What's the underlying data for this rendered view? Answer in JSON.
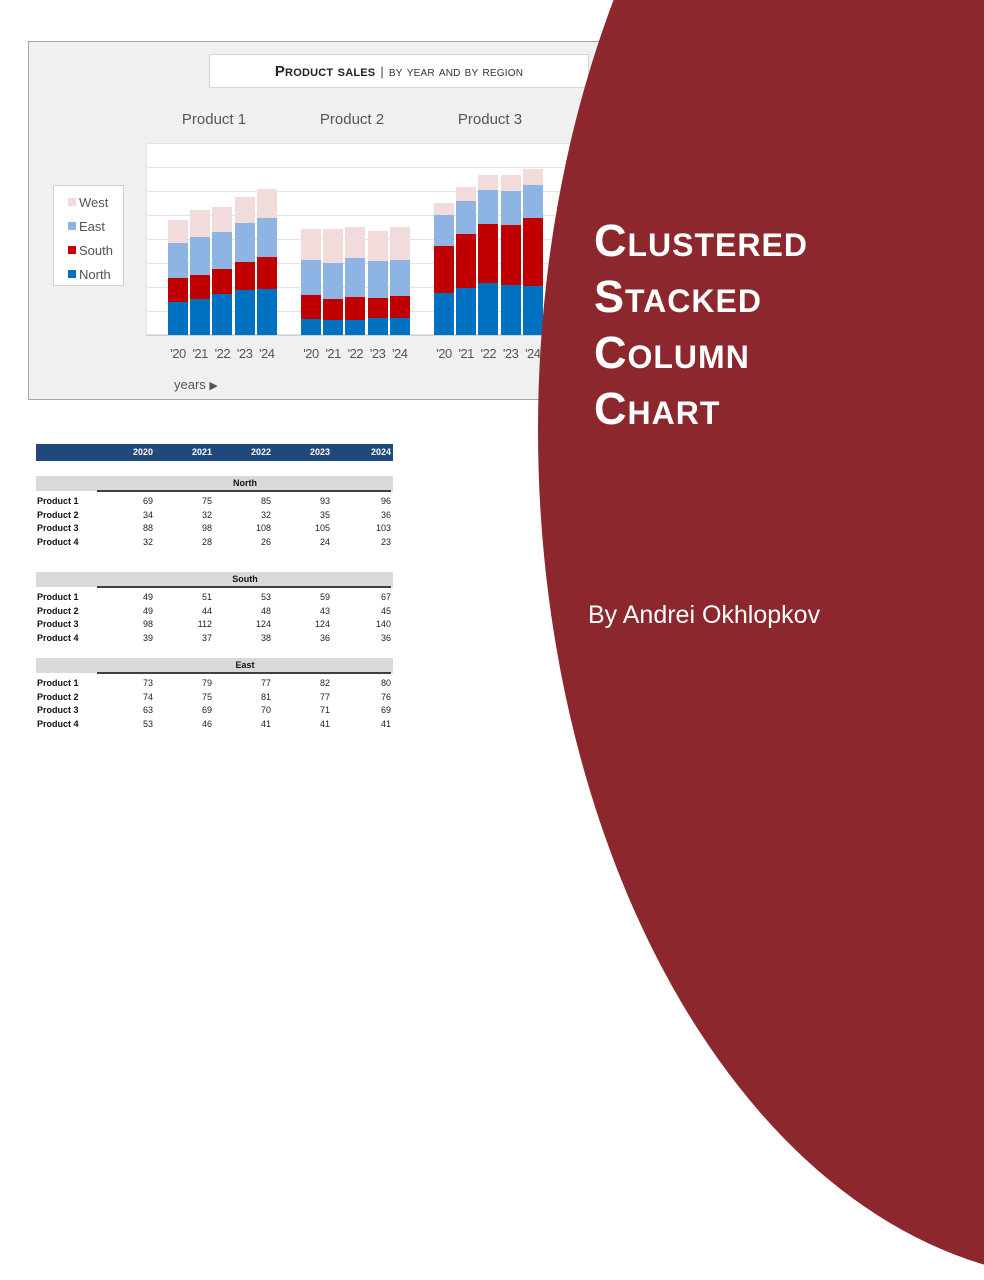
{
  "chart": {
    "title_main": "Product sales",
    "title_sep": "|",
    "title_sub": "by year and by region",
    "product_labels": [
      "Product 1",
      "Product 2",
      "Product 3"
    ],
    "tick_labels": [
      "'20",
      "'21",
      "'22",
      "'23",
      "'24"
    ],
    "x_axis_label": "years",
    "x_axis_arrow": "▶",
    "legend": [
      {
        "label": "West",
        "color": "#f2dcdb"
      },
      {
        "label": "East",
        "color": "#8db4e2"
      },
      {
        "label": "South",
        "color": "#c00000"
      },
      {
        "label": "North",
        "color": "#0070c0"
      }
    ]
  },
  "chart_data": {
    "type": "bar",
    "subtype": "clustered-stacked",
    "title": "Product sales | by year and by region",
    "xlabel": "years",
    "ylabel": "",
    "ylim": [
      0,
      400
    ],
    "grid": true,
    "legend_position": "left",
    "groups": [
      "Product 1",
      "Product 2",
      "Product 3"
    ],
    "categories": [
      "'20",
      "'21",
      "'22",
      "'23",
      "'24"
    ],
    "stack_order": [
      "North",
      "South",
      "East",
      "West"
    ],
    "series": [
      {
        "name": "North",
        "color": "#0070c0",
        "values": {
          "Product 1": [
            69,
            75,
            85,
            93,
            96
          ],
          "Product 2": [
            34,
            32,
            32,
            35,
            36
          ],
          "Product 3": [
            88,
            98,
            108,
            105,
            103
          ]
        }
      },
      {
        "name": "South",
        "color": "#c00000",
        "values": {
          "Product 1": [
            49,
            51,
            53,
            59,
            67
          ],
          "Product 2": [
            49,
            44,
            48,
            43,
            45
          ],
          "Product 3": [
            98,
            112,
            124,
            124,
            140
          ]
        }
      },
      {
        "name": "East",
        "color": "#8db4e2",
        "values": {
          "Product 1": [
            73,
            79,
            77,
            82,
            80
          ],
          "Product 2": [
            74,
            75,
            81,
            77,
            76
          ],
          "Product 3": [
            63,
            69,
            70,
            71,
            69
          ]
        }
      },
      {
        "name": "West",
        "color": "#f2dcdb",
        "values": {
          "Product 1": [
            49,
            55,
            52,
            53,
            61
          ],
          "Product 2": [
            64,
            70,
            63,
            61,
            69
          ],
          "Product 3": [
            27,
            30,
            32,
            34,
            34
          ]
        }
      }
    ]
  },
  "table": {
    "years": [
      "2020",
      "2021",
      "2022",
      "2023",
      "2024"
    ],
    "header_color": "#1f497d",
    "regions": [
      {
        "name": "North",
        "rows": [
          {
            "label": "Product 1",
            "values": [
              "69",
              "75",
              "85",
              "93",
              "96"
            ]
          },
          {
            "label": "Product 2",
            "values": [
              "34",
              "32",
              "32",
              "35",
              "36"
            ]
          },
          {
            "label": "Product 3",
            "values": [
              "88",
              "98",
              "108",
              "105",
              "103"
            ]
          },
          {
            "label": "Product 4",
            "values": [
              "32",
              "28",
              "26",
              "24",
              "23"
            ]
          }
        ]
      },
      {
        "name": "South",
        "rows": [
          {
            "label": "Product 1",
            "values": [
              "49",
              "51",
              "53",
              "59",
              "67"
            ]
          },
          {
            "label": "Product 2",
            "values": [
              "49",
              "44",
              "48",
              "43",
              "45"
            ]
          },
          {
            "label": "Product 3",
            "values": [
              "98",
              "112",
              "124",
              "124",
              "140"
            ]
          },
          {
            "label": "Product 4",
            "values": [
              "39",
              "37",
              "38",
              "36",
              "36"
            ]
          }
        ]
      },
      {
        "name": "East",
        "rows": [
          {
            "label": "Product 1",
            "values": [
              "73",
              "79",
              "77",
              "82",
              "80"
            ]
          },
          {
            "label": "Product 2",
            "values": [
              "74",
              "75",
              "81",
              "77",
              "76"
            ]
          },
          {
            "label": "Product 3",
            "values": [
              "63",
              "69",
              "70",
              "71",
              "69"
            ]
          },
          {
            "label": "Product 4",
            "values": [
              "53",
              "46",
              "41",
              "41",
              "41"
            ]
          }
        ]
      }
    ]
  },
  "cover": {
    "title_lines": [
      "Clustered",
      "Stacked",
      "Column",
      "Chart"
    ],
    "author": "By Andrei Okhlopkov",
    "panel_color": "#8c272d"
  }
}
